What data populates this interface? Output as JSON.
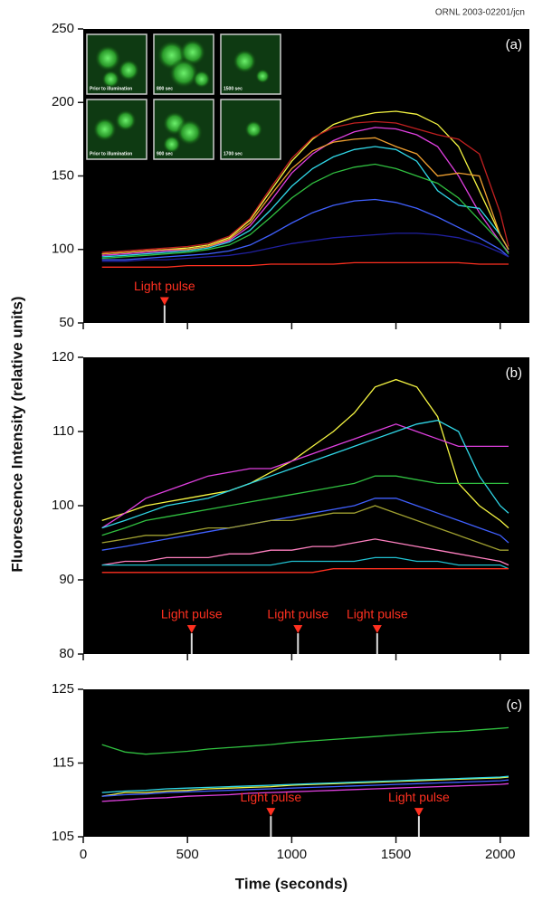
{
  "figure": {
    "credit": "ORNL 2003-02201/jcn",
    "y_label": "Fluorescence Intensity (relative units)",
    "x_label": "Time (seconds)"
  },
  "chart_data": [
    {
      "type": "line",
      "panel_label": "(a)",
      "xlim": [
        0,
        2140
      ],
      "xticks": [
        0,
        500,
        1000,
        1500,
        2000
      ],
      "show_xtick_labels": false,
      "ylim": [
        50,
        250
      ],
      "yticks": [
        50,
        100,
        150,
        200,
        250
      ],
      "x": [
        90,
        200,
        300,
        400,
        500,
        600,
        700,
        800,
        900,
        1000,
        1100,
        1200,
        1300,
        1400,
        1500,
        1600,
        1700,
        1800,
        1900,
        2000,
        2040
      ],
      "series": [
        {
          "color": "#f5f542",
          "values": [
            97,
            98,
            99,
            100,
            101,
            103,
            108,
            120,
            140,
            160,
            175,
            185,
            190,
            193,
            194,
            192,
            185,
            170,
            140,
            110,
            100
          ]
        },
        {
          "color": "#e040e0",
          "values": [
            96,
            97,
            98,
            99,
            100,
            102,
            106,
            116,
            133,
            152,
            165,
            174,
            180,
            183,
            182,
            178,
            170,
            150,
            125,
            105,
            98
          ]
        },
        {
          "color": "#30d8e8",
          "values": [
            95,
            96,
            97,
            98,
            99,
            101,
            105,
            113,
            127,
            143,
            155,
            163,
            168,
            170,
            168,
            160,
            140,
            130,
            128,
            110,
            100
          ]
        },
        {
          "color": "#30c040",
          "values": [
            94,
            95,
            96,
            97,
            98,
            100,
            103,
            110,
            122,
            135,
            145,
            152,
            156,
            158,
            155,
            150,
            145,
            135,
            120,
            105,
            97
          ]
        },
        {
          "color": "#c02020",
          "values": [
            98,
            99,
            100,
            101,
            102,
            104,
            109,
            121,
            142,
            162,
            176,
            183,
            186,
            187,
            186,
            182,
            178,
            175,
            165,
            125,
            102
          ]
        },
        {
          "color": "#4060ff",
          "values": [
            93,
            93,
            94,
            95,
            96,
            97,
            99,
            103,
            110,
            118,
            125,
            130,
            133,
            134,
            132,
            128,
            122,
            115,
            108,
            100,
            95
          ]
        },
        {
          "color": "#2020a0",
          "values": [
            92,
            92,
            93,
            93,
            94,
            95,
            96,
            98,
            101,
            104,
            106,
            108,
            109,
            110,
            111,
            111,
            110,
            108,
            104,
            98,
            95
          ]
        },
        {
          "color": "#ff3020",
          "values": [
            88,
            88,
            88,
            88,
            89,
            89,
            89,
            89,
            90,
            90,
            90,
            90,
            91,
            91,
            91,
            91,
            91,
            91,
            90,
            90,
            90
          ]
        },
        {
          "color": "#f0a030",
          "values": [
            97,
            98,
            99,
            100,
            100,
            102,
            107,
            118,
            137,
            155,
            167,
            173,
            175,
            176,
            170,
            165,
            150,
            152,
            150,
            110,
            100
          ]
        }
      ],
      "annotations": [
        {
          "text": "Light pulse",
          "x": 390,
          "y": 62
        }
      ],
      "insets": [
        {
          "caption": "Prior to illumination"
        },
        {
          "caption": "800 sec"
        },
        {
          "caption": "1500 sec"
        },
        {
          "caption": "Prior to illumination"
        },
        {
          "caption": "900 sec"
        },
        {
          "caption": "1700 sec"
        }
      ]
    },
    {
      "type": "line",
      "panel_label": "(b)",
      "xlim": [
        0,
        2140
      ],
      "xticks": [
        0,
        500,
        1000,
        1500,
        2000
      ],
      "show_xtick_labels": false,
      "ylim": [
        80,
        120
      ],
      "yticks": [
        80,
        90,
        100,
        110,
        120
      ],
      "x": [
        90,
        200,
        300,
        400,
        500,
        600,
        700,
        800,
        900,
        1000,
        1100,
        1200,
        1300,
        1400,
        1500,
        1600,
        1700,
        1800,
        1900,
        2000,
        2040
      ],
      "series": [
        {
          "color": "#f5f542",
          "values": [
            98,
            99,
            100,
            100.5,
            101,
            101.5,
            102,
            103,
            104.5,
            106,
            108,
            110,
            112.5,
            116,
            117,
            116,
            112,
            103,
            100,
            98,
            97
          ]
        },
        {
          "color": "#e040e0",
          "values": [
            97,
            99,
            101,
            102,
            103,
            104,
            104.5,
            105,
            105,
            106,
            107,
            108,
            109,
            110,
            111,
            110,
            109,
            108,
            108,
            108,
            108
          ]
        },
        {
          "color": "#30d8e8",
          "values": [
            97,
            98,
            99,
            100,
            100.5,
            101,
            102,
            103,
            104,
            105,
            106,
            107,
            108,
            109,
            110,
            111,
            111.5,
            110,
            104,
            100,
            99
          ]
        },
        {
          "color": "#30c040",
          "values": [
            96,
            97,
            98,
            98.5,
            99,
            99.5,
            100,
            100.5,
            101,
            101.5,
            102,
            102.5,
            103,
            104,
            104,
            103.5,
            103,
            103,
            103,
            103,
            103
          ]
        },
        {
          "color": "#4060ff",
          "values": [
            94,
            94.5,
            95,
            95.5,
            96,
            96.5,
            97,
            97.5,
            98,
            98.5,
            99,
            99.5,
            100,
            101,
            101,
            100,
            99,
            98,
            97,
            96,
            95
          ]
        },
        {
          "color": "#a0a030",
          "values": [
            95,
            95.5,
            96,
            96,
            96.5,
            97,
            97,
            97.5,
            98,
            98,
            98.5,
            99,
            99,
            100,
            99,
            98,
            97,
            96,
            95,
            94,
            94
          ]
        },
        {
          "color": "#ff80c0",
          "values": [
            92,
            92.5,
            92.5,
            93,
            93,
            93,
            93.5,
            93.5,
            94,
            94,
            94.5,
            94.5,
            95,
            95.5,
            95,
            94.5,
            94,
            93.5,
            93,
            92.5,
            92
          ]
        },
        {
          "color": "#20c0d0",
          "values": [
            92,
            92,
            92,
            92,
            92,
            92,
            92,
            92,
            92,
            92.5,
            92.5,
            92.5,
            92.5,
            93,
            93,
            92.5,
            92.5,
            92,
            92,
            92,
            91.5
          ]
        },
        {
          "color": "#ff3020",
          "values": [
            91,
            91,
            91,
            91,
            91,
            91,
            91,
            91,
            91,
            91,
            91,
            91.5,
            91.5,
            91.5,
            91.5,
            91.5,
            91.5,
            91.5,
            91.5,
            91.5,
            91.5
          ]
        }
      ],
      "annotations": [
        {
          "text": "Light pulse",
          "x": 520,
          "y": 82.8
        },
        {
          "text": "Light pulse",
          "x": 1030,
          "y": 82.8
        },
        {
          "text": "Light pulse",
          "x": 1410,
          "y": 82.8
        }
      ]
    },
    {
      "type": "line",
      "panel_label": "(c)",
      "xlim": [
        0,
        2140
      ],
      "xticks": [
        0,
        500,
        1000,
        1500,
        2000
      ],
      "show_xtick_labels": true,
      "ylim": [
        105,
        125
      ],
      "yticks": [
        105,
        115,
        125
      ],
      "x": [
        90,
        200,
        300,
        400,
        500,
        600,
        700,
        800,
        900,
        1000,
        1100,
        1200,
        1300,
        1400,
        1500,
        1600,
        1700,
        1800,
        1900,
        2000,
        2040
      ],
      "series": [
        {
          "color": "#30c040",
          "values": [
            117.5,
            116.5,
            116.2,
            116.4,
            116.6,
            116.9,
            117.1,
            117.3,
            117.5,
            117.8,
            118,
            118.2,
            118.4,
            118.6,
            118.8,
            119,
            119.2,
            119.3,
            119.5,
            119.7,
            119.8
          ]
        },
        {
          "color": "#f5f542",
          "values": [
            110.5,
            111,
            111,
            111.2,
            111.3,
            111.5,
            111.6,
            111.7,
            111.8,
            112,
            112.1,
            112.2,
            112.3,
            112.4,
            112.5,
            112.6,
            112.7,
            112.8,
            112.9,
            113,
            113.1
          ]
        },
        {
          "color": "#30d8e8",
          "values": [
            111,
            111.2,
            111.3,
            111.5,
            111.6,
            111.7,
            111.8,
            111.9,
            112,
            112.1,
            112.2,
            112.3,
            112.4,
            112.5,
            112.6,
            112.7,
            112.8,
            112.9,
            113,
            113.1,
            113.2
          ]
        },
        {
          "color": "#e040e0",
          "values": [
            109.8,
            110,
            110.2,
            110.3,
            110.5,
            110.6,
            110.7,
            110.9,
            111,
            111.1,
            111.2,
            111.3,
            111.4,
            111.5,
            111.6,
            111.7,
            111.8,
            111.9,
            112,
            112.1,
            112.2
          ]
        },
        {
          "color": "#4060ff",
          "values": [
            110.5,
            110.7,
            110.8,
            111,
            111.1,
            111.2,
            111.3,
            111.4,
            111.5,
            111.6,
            111.7,
            111.8,
            111.9,
            112,
            112.1,
            112.2,
            112.3,
            112.4,
            112.5,
            112.6,
            112.7
          ]
        }
      ],
      "annotations": [
        {
          "text": "Light pulse",
          "x": 900,
          "y": 107.8
        },
        {
          "text": "Light pulse",
          "x": 1610,
          "y": 107.8
        }
      ]
    }
  ]
}
